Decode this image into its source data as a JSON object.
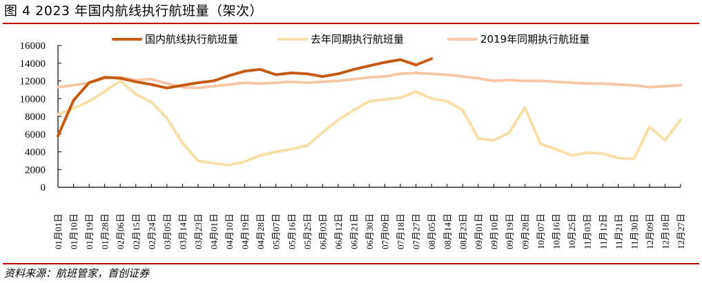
{
  "figure": {
    "title": "图  4 2023 年国内航线执行航班量（架次）",
    "source": "资料来源：航班管家，首创证券"
  },
  "legend": {
    "items": [
      {
        "label": "国内航线执行航班量",
        "color": "#c55a11"
      },
      {
        "label": "去年同期执行航班量",
        "color": "#f8dfa8"
      },
      {
        "label": "2019年同期执行航班量",
        "color": "#f7c6a8"
      }
    ]
  },
  "chart_data": {
    "type": "line",
    "title": "2023 年国内航线执行航班量（架次）",
    "xlabel": "",
    "ylabel": "",
    "ylim": [
      0,
      16000
    ],
    "yticks": [
      0,
      2000,
      4000,
      6000,
      8000,
      10000,
      12000,
      14000,
      16000
    ],
    "grid": false,
    "legend_position": "top",
    "categories": [
      "01月01日",
      "01月10日",
      "01月19日",
      "01月28日",
      "02月06日",
      "02月15日",
      "02月24日",
      "03月05日",
      "03月14日",
      "03月23日",
      "04月01日",
      "04月10日",
      "04月19日",
      "04月28日",
      "05月07日",
      "05月16日",
      "05月25日",
      "06月03日",
      "06月12日",
      "06月21日",
      "06月30日",
      "07月09日",
      "07月18日",
      "07月27日",
      "08月05日",
      "08月14日",
      "08月23日",
      "09月01日",
      "09月10日",
      "09月19日",
      "09月28日",
      "10月07日",
      "10月16日",
      "10月25日",
      "11月03日",
      "11月12日",
      "11月21日",
      "11月30日",
      "12月09日",
      "12月18日",
      "12月27日"
    ],
    "series": [
      {
        "name": "国内航线执行航班量",
        "color": "#c55a11",
        "values": [
          5800,
          9800,
          11800,
          12400,
          12300,
          11900,
          11600,
          11200,
          11500,
          11800,
          12000,
          12600,
          13100,
          13300,
          12700,
          12900,
          12800,
          12500,
          12800,
          13300,
          13700,
          14100,
          14400,
          13800,
          14500,
          null,
          null,
          null,
          null,
          null,
          null,
          null,
          null,
          null,
          null,
          null,
          null,
          null,
          null,
          null,
          null
        ]
      },
      {
        "name": "去年同期执行航班量",
        "color": "#f8dfa8",
        "values": [
          8200,
          8900,
          9700,
          10800,
          12000,
          10500,
          9600,
          7800,
          5000,
          3000,
          2700,
          2500,
          2900,
          3600,
          4000,
          4300,
          4700,
          6200,
          7600,
          8700,
          9700,
          9900,
          10100,
          10800,
          10000,
          9700,
          8700,
          5500,
          5300,
          6200,
          9000,
          4900,
          4300,
          3600,
          3900,
          3800,
          3300,
          3200,
          6800,
          5300,
          7600
        ]
      },
      {
        "name": "2019年同期执行航班量",
        "color": "#f7c6a8",
        "values": [
          11300,
          11500,
          11800,
          12300,
          12400,
          12100,
          12200,
          11700,
          11300,
          11200,
          11400,
          11600,
          11800,
          11700,
          11800,
          11900,
          11800,
          11900,
          12000,
          12200,
          12400,
          12500,
          12800,
          12900,
          12800,
          12700,
          12500,
          12300,
          12000,
          12100,
          12000,
          12000,
          11900,
          11800,
          11700,
          11700,
          11600,
          11500,
          11300,
          11400,
          11500
        ]
      }
    ]
  }
}
